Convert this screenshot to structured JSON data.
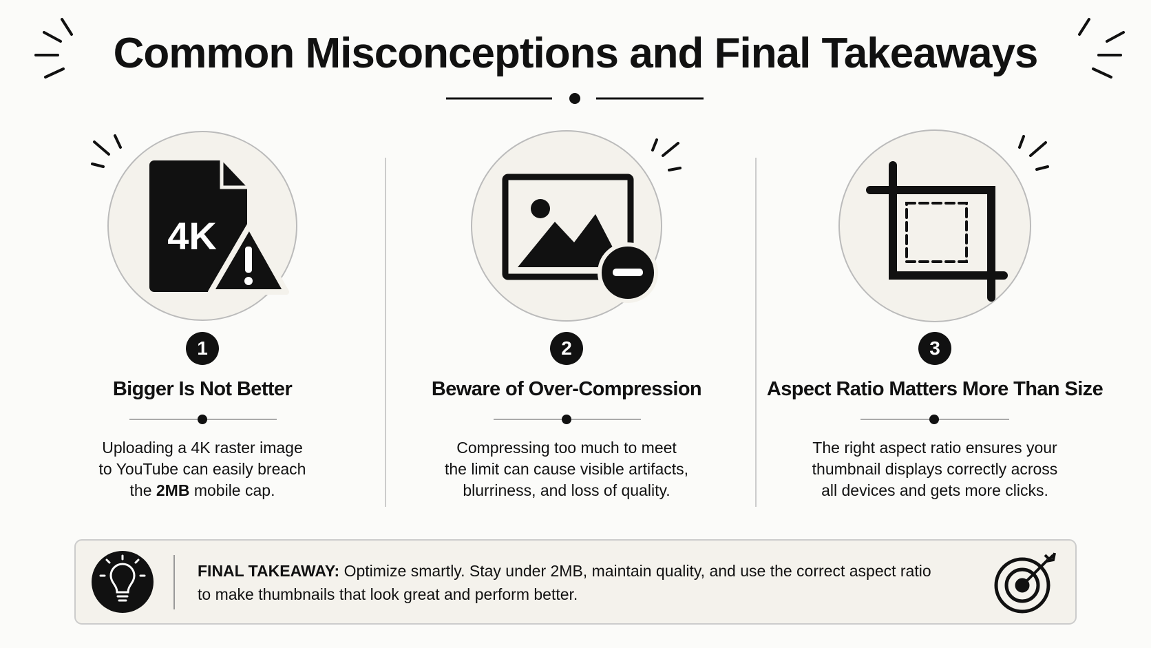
{
  "header": {
    "title": "Common Misconceptions and Final Takeaways"
  },
  "cards": [
    {
      "number": 1,
      "icon_text": "4K",
      "title": "Bigger Is Not Better",
      "description": [
        [
          "Uploading a 4K raster image"
        ],
        [
          "to YouTube can easily breach"
        ],
        [
          "the ",
          "2MB",
          " mobile cap."
        ]
      ]
    },
    {
      "number": 2,
      "title": "Beware of Over-Compression",
      "description": [
        [
          "Compressing too much to meet"
        ],
        [
          "the limit can cause visible artifacts,"
        ],
        [
          "blurriness, and loss of quality."
        ]
      ]
    },
    {
      "number": 3,
      "title": "Aspect Ratio Matters More Than Size",
      "description": [
        [
          "The right aspect ratio ensures your"
        ],
        [
          "thumbnail displays correctly across"
        ],
        [
          "all devices and gets more clicks."
        ]
      ]
    }
  ],
  "takeaway": {
    "label": "FINAL TAKEAWAY:",
    "lines": [
      "Optimize smartly. Stay under 2MB, maintain quality, and use the correct aspect ratio",
      "to make thumbnails that look great and perform better."
    ]
  }
}
